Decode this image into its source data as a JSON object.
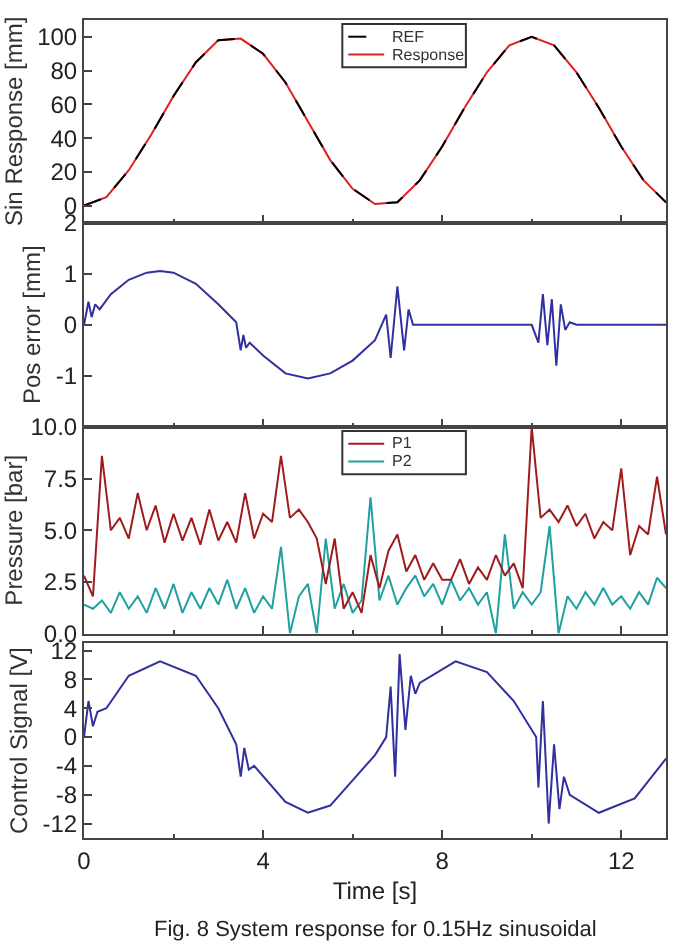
{
  "chart_data": [
    {
      "type": "line",
      "ylabel": "Sin Response [mm]",
      "xlim": [
        0,
        13
      ],
      "xticks": [
        0,
        4,
        8,
        12
      ],
      "ylim": [
        -10,
        110
      ],
      "yticks": [
        0,
        20,
        40,
        60,
        80,
        100
      ],
      "tick_labels": "y",
      "legend": "top",
      "x": [
        0,
        0.5,
        1,
        1.5,
        2,
        2.5,
        3,
        3.5,
        4,
        4.5,
        5,
        5.5,
        6,
        6.5,
        7,
        7.5,
        8,
        8.5,
        9,
        9.5,
        10,
        10.5,
        11,
        11.5,
        12,
        12.5,
        13
      ],
      "series": [
        {
          "name": "REF",
          "color": "#000000",
          "line_style": "dashed",
          "values": [
            0,
            5,
            21,
            42,
            65,
            85,
            98,
            99,
            90,
            73,
            50,
            27,
            10,
            1,
            2,
            15,
            35,
            58,
            79,
            95,
            100,
            95,
            79,
            58,
            35,
            15,
            2
          ]
        },
        {
          "name": "Response",
          "color": "#e02020",
          "line_style": "solid",
          "values": [
            0,
            5,
            21,
            42,
            65,
            85,
            98,
            99,
            90,
            73,
            50,
            27,
            10,
            1,
            2,
            15,
            35,
            58,
            79,
            95,
            100,
            95,
            79,
            58,
            35,
            15,
            2
          ]
        }
      ]
    },
    {
      "type": "line",
      "ylabel": "Pos error [mm]",
      "xlim": [
        0,
        13
      ],
      "xticks": [
        0,
        4,
        8,
        12
      ],
      "ylim": [
        -2,
        2
      ],
      "yticks": [
        -1,
        0,
        1,
        2
      ],
      "tick_labels": "y",
      "x": [
        0,
        0.1,
        0.17,
        0.25,
        0.35,
        0.6,
        1.0,
        1.4,
        1.7,
        2.0,
        2.5,
        3.0,
        3.4,
        3.5,
        3.56,
        3.62,
        3.7,
        4.0,
        4.5,
        5.0,
        5.5,
        6.0,
        6.5,
        6.75,
        6.85,
        7.0,
        7.15,
        7.25,
        7.35,
        7.5,
        8,
        9,
        10.0,
        10.15,
        10.25,
        10.35,
        10.45,
        10.55,
        10.65,
        10.75,
        10.85,
        11,
        13
      ],
      "series": [
        {
          "color": "#3030a0",
          "values": [
            0,
            0.45,
            0.15,
            0.4,
            0.3,
            0.6,
            0.88,
            1.02,
            1.05,
            1.02,
            0.8,
            0.4,
            0.05,
            -0.5,
            -0.2,
            -0.45,
            -0.35,
            -0.6,
            -0.95,
            -1.05,
            -0.95,
            -0.7,
            -0.3,
            0.2,
            -0.65,
            0.75,
            -0.5,
            0.3,
            0,
            0,
            0,
            0,
            0,
            -0.35,
            0.6,
            -0.4,
            0.5,
            -0.8,
            0.4,
            -0.1,
            0.05,
            0,
            0
          ]
        }
      ]
    },
    {
      "type": "line",
      "ylabel": "Pressure [bar]",
      "xlim": [
        0,
        13
      ],
      "xticks": [
        0,
        4,
        8,
        12
      ],
      "ylim": [
        0,
        10
      ],
      "yticks": [
        {
          "value": 0,
          "label": "0.0"
        },
        {
          "value": 2.5,
          "label": "2.5"
        },
        {
          "value": 5,
          "label": "5.0"
        },
        {
          "value": 7.5,
          "label": "7.5"
        },
        {
          "value": 10,
          "label": "10.0"
        }
      ],
      "tick_labels": "y",
      "legend": "top",
      "x": [
        0,
        0.2,
        0.4,
        0.6,
        0.8,
        1.0,
        1.2,
        1.4,
        1.6,
        1.8,
        2.0,
        2.2,
        2.4,
        2.6,
        2.8,
        3.0,
        3.2,
        3.4,
        3.6,
        3.8,
        4.0,
        4.2,
        4.4,
        4.6,
        4.8,
        5.0,
        5.2,
        5.4,
        5.6,
        5.8,
        6.0,
        6.2,
        6.4,
        6.6,
        6.8,
        7.0,
        7.2,
        7.4,
        7.6,
        7.8,
        8.0,
        8.2,
        8.4,
        8.6,
        8.8,
        9.0,
        9.2,
        9.4,
        9.6,
        9.8,
        10.0,
        10.2,
        10.4,
        10.6,
        10.8,
        11.0,
        11.2,
        11.4,
        11.6,
        11.8,
        12.0,
        12.2,
        12.4,
        12.6,
        12.8,
        13.0
      ],
      "series": [
        {
          "name": "P1",
          "color": "#a01c1c",
          "values": [
            2.8,
            1.8,
            8.6,
            5.0,
            5.6,
            4.6,
            6.8,
            5.0,
            6.2,
            4.4,
            5.8,
            4.5,
            5.6,
            4.3,
            6.0,
            4.5,
            5.4,
            4.4,
            6.8,
            4.6,
            5.8,
            5.4,
            8.6,
            5.6,
            6.0,
            5.4,
            4.6,
            2.4,
            4.6,
            1.2,
            2.0,
            1.0,
            3.8,
            2.2,
            4.0,
            4.8,
            3.0,
            3.8,
            2.6,
            3.4,
            2.6,
            2.6,
            3.6,
            2.4,
            3.2,
            2.6,
            3.8,
            2.8,
            3.4,
            2.2,
            10.0,
            5.6,
            6.0,
            5.4,
            6.2,
            5.2,
            5.8,
            4.6,
            5.4,
            5.0,
            8.0,
            3.8,
            5.2,
            4.8,
            7.6,
            4.8
          ]
        },
        {
          "name": "P2",
          "color": "#20a0a0",
          "values": [
            1.4,
            1.2,
            1.6,
            1.0,
            2.0,
            1.2,
            1.8,
            1.0,
            2.2,
            1.2,
            2.4,
            1.0,
            2.0,
            1.2,
            2.2,
            1.4,
            2.6,
            1.2,
            2.2,
            1.0,
            1.8,
            1.2,
            4.2,
            0.0,
            1.8,
            2.4,
            0.0,
            4.6,
            1.2,
            2.4,
            1.0,
            1.6,
            6.6,
            1.6,
            2.8,
            1.4,
            2.2,
            2.8,
            1.8,
            2.4,
            1.4,
            2.6,
            1.6,
            2.2,
            1.4,
            2.0,
            0.0,
            4.8,
            1.2,
            2.0,
            1.4,
            2.0,
            5.2,
            0.0,
            1.8,
            1.2,
            2.0,
            1.4,
            2.2,
            1.4,
            1.8,
            1.2,
            2.0,
            1.4,
            2.7,
            2.2
          ]
        }
      ]
    },
    {
      "type": "line",
      "ylabel": "Control Signal [V]",
      "xlabel": "Time [s]",
      "xlim": [
        0,
        13
      ],
      "xticks": [
        0,
        4,
        8,
        12
      ],
      "ylim": [
        -14,
        13
      ],
      "yticks": [
        -12,
        -8,
        -4,
        0,
        4,
        8,
        12
      ],
      "annotations": [
        "Fig. 8 System response for 0.15Hz sinusoidal"
      ],
      "x": [
        0,
        0.1,
        0.2,
        0.3,
        0.5,
        1.0,
        1.7,
        2.5,
        3.0,
        3.4,
        3.5,
        3.58,
        3.68,
        3.8,
        4.5,
        5.0,
        5.5,
        6.0,
        6.5,
        6.75,
        6.85,
        6.95,
        7.05,
        7.18,
        7.3,
        7.4,
        7.5,
        8.3,
        9.0,
        9.6,
        10.1,
        10.15,
        10.25,
        10.38,
        10.5,
        10.62,
        10.72,
        10.85,
        11.5,
        12.3,
        13
      ],
      "series": [
        {
          "color": "#3030a0",
          "values": [
            0,
            5,
            1.5,
            3.5,
            4,
            8.5,
            10.5,
            8.5,
            4,
            -1,
            -5.5,
            -1.5,
            -4.5,
            -4,
            -9,
            -10.5,
            -9.5,
            -6,
            -2.5,
            0,
            7,
            -5.5,
            11.5,
            1,
            8.5,
            6,
            7.5,
            10.5,
            9,
            5,
            0,
            -7,
            5,
            -12,
            -1,
            -10,
            -5.5,
            -8,
            -10.5,
            -8.5,
            -3
          ]
        }
      ]
    }
  ]
}
